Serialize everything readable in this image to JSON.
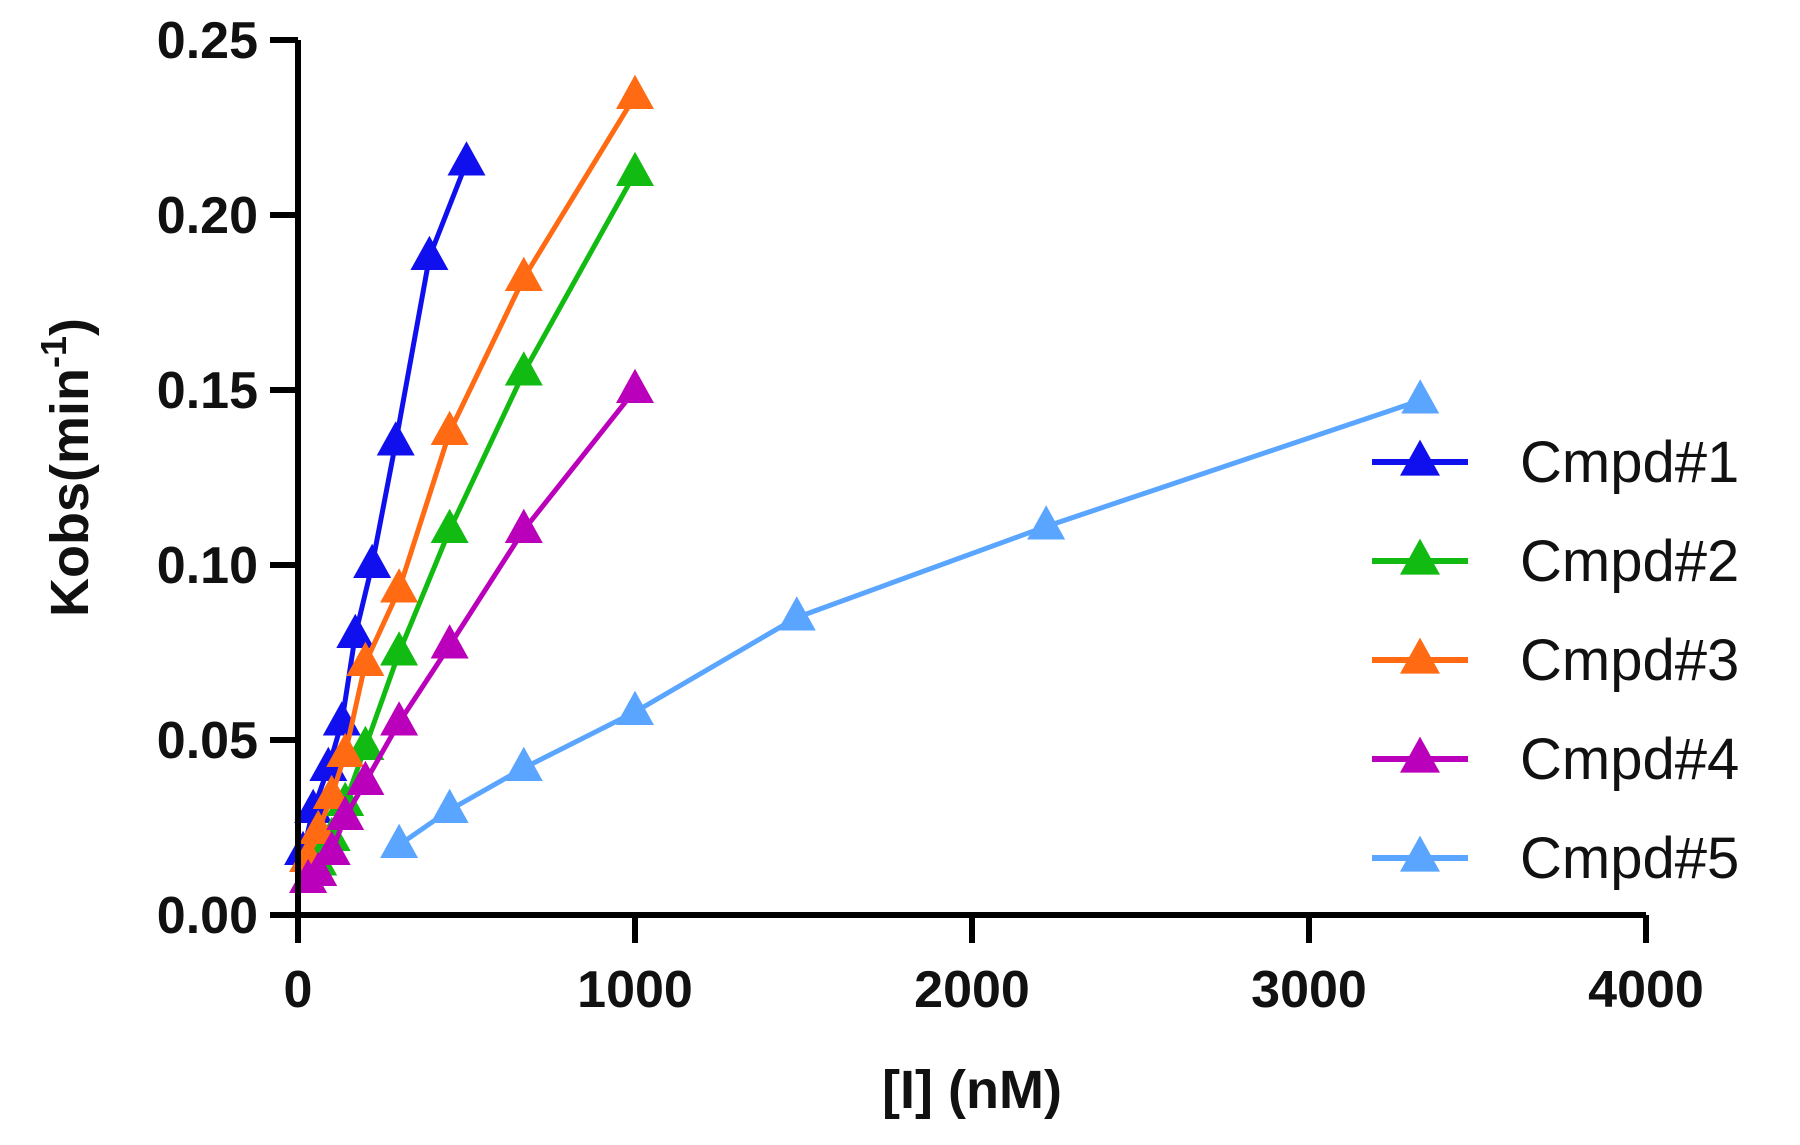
{
  "chart_data": {
    "type": "line",
    "title": "",
    "xlabel": "[I] (nM)",
    "ylabel_main": "Kobs(min",
    "ylabel_sup": "-1",
    "ylabel_close": ")",
    "xlim": [
      0,
      4000
    ],
    "ylim": [
      0,
      0.25
    ],
    "x_ticks": [
      0,
      1000,
      2000,
      3000,
      4000
    ],
    "x_tick_labels": [
      "0",
      "1000",
      "2000",
      "3000",
      "4000"
    ],
    "y_ticks": [
      0,
      0.05,
      0.1,
      0.15,
      0.2,
      0.25
    ],
    "y_tick_labels": [
      "0.00",
      "0.05",
      "0.10",
      "0.15",
      "0.20",
      "0.25"
    ],
    "grid": false,
    "legend_position": "right",
    "marker": "triangle",
    "series": [
      {
        "name": "Cmpd#1",
        "color": "#1010ee",
        "x": [
          15,
          45,
          90,
          130,
          170,
          220,
          290,
          390,
          500
        ],
        "y": [
          0.018,
          0.03,
          0.042,
          0.055,
          0.08,
          0.1,
          0.135,
          0.188,
          0.215
        ]
      },
      {
        "name": "Cmpd#2",
        "color": "#11bb11",
        "x": [
          30,
          60,
          100,
          140,
          200,
          300,
          450,
          670,
          1000
        ],
        "y": [
          0.01,
          0.015,
          0.022,
          0.032,
          0.048,
          0.075,
          0.11,
          0.155,
          0.212
        ]
      },
      {
        "name": "Cmpd#3",
        "color": "#ff6a13",
        "x": [
          30,
          60,
          100,
          140,
          200,
          300,
          450,
          670,
          1000
        ],
        "y": [
          0.016,
          0.024,
          0.034,
          0.046,
          0.072,
          0.093,
          0.138,
          0.182,
          0.234
        ]
      },
      {
        "name": "Cmpd#4",
        "color": "#bb00bb",
        "x": [
          30,
          60,
          100,
          140,
          200,
          300,
          450,
          670,
          1000
        ],
        "y": [
          0.01,
          0.012,
          0.018,
          0.028,
          0.038,
          0.055,
          0.077,
          0.11,
          0.15
        ]
      },
      {
        "name": "Cmpd#5",
        "color": "#5aa5ff",
        "x": [
          300,
          450,
          670,
          1000,
          1480,
          2220,
          3330
        ],
        "y": [
          0.02,
          0.03,
          0.042,
          0.058,
          0.085,
          0.111,
          0.147
        ]
      }
    ]
  }
}
